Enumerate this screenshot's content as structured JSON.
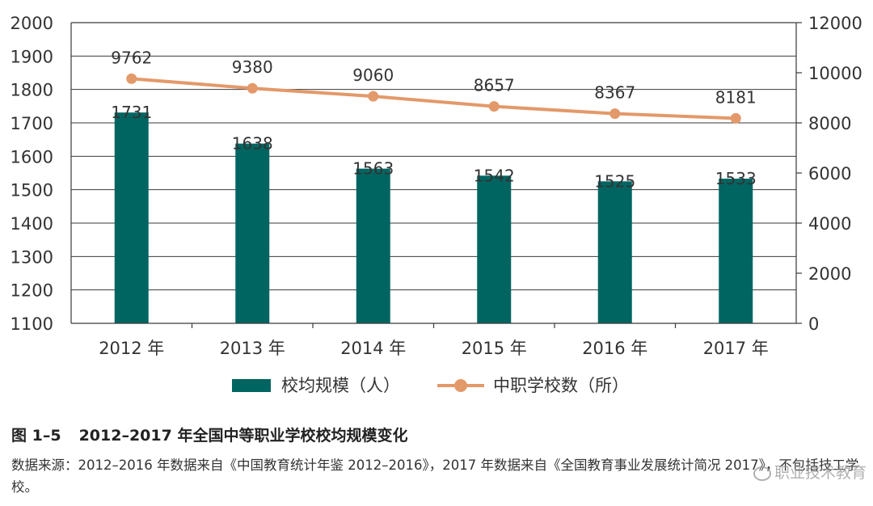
{
  "chart_data": {
    "type": "bar+line",
    "categories": [
      "2012 年",
      "2013 年",
      "2014 年",
      "2015 年",
      "2016 年",
      "2017 年"
    ],
    "series": [
      {
        "name": "校均规模（人）",
        "type": "bar",
        "axis": "left",
        "values": [
          1731,
          1638,
          1563,
          1542,
          1525,
          1533
        ],
        "color": "#006561"
      },
      {
        "name": "中职学校数（所）",
        "type": "line",
        "axis": "right",
        "values": [
          9762,
          9380,
          9060,
          8657,
          8367,
          8181
        ],
        "color": "#E3996A"
      }
    ],
    "left_axis": {
      "min": 1100,
      "max": 2000,
      "ticks": [
        1100,
        1200,
        1300,
        1400,
        1500,
        1600,
        1700,
        1800,
        1900,
        2000
      ]
    },
    "right_axis": {
      "min": 0,
      "max": 12000,
      "ticks": [
        0,
        2000,
        4000,
        6000,
        8000,
        10000,
        12000
      ]
    },
    "grid": true,
    "legend_position": "bottom"
  },
  "caption": {
    "number": "图 1–5",
    "title": "2012–2017 年全国中等职业学校校均规模变化"
  },
  "source_note": "数据来源：2012–2016 年数据来自《中国教育统计年鉴 2012–2016》，2017 年数据来自《全国教育事业发展统计简况 2017》，不包括技工学校。",
  "watermark": "职业技术教育"
}
